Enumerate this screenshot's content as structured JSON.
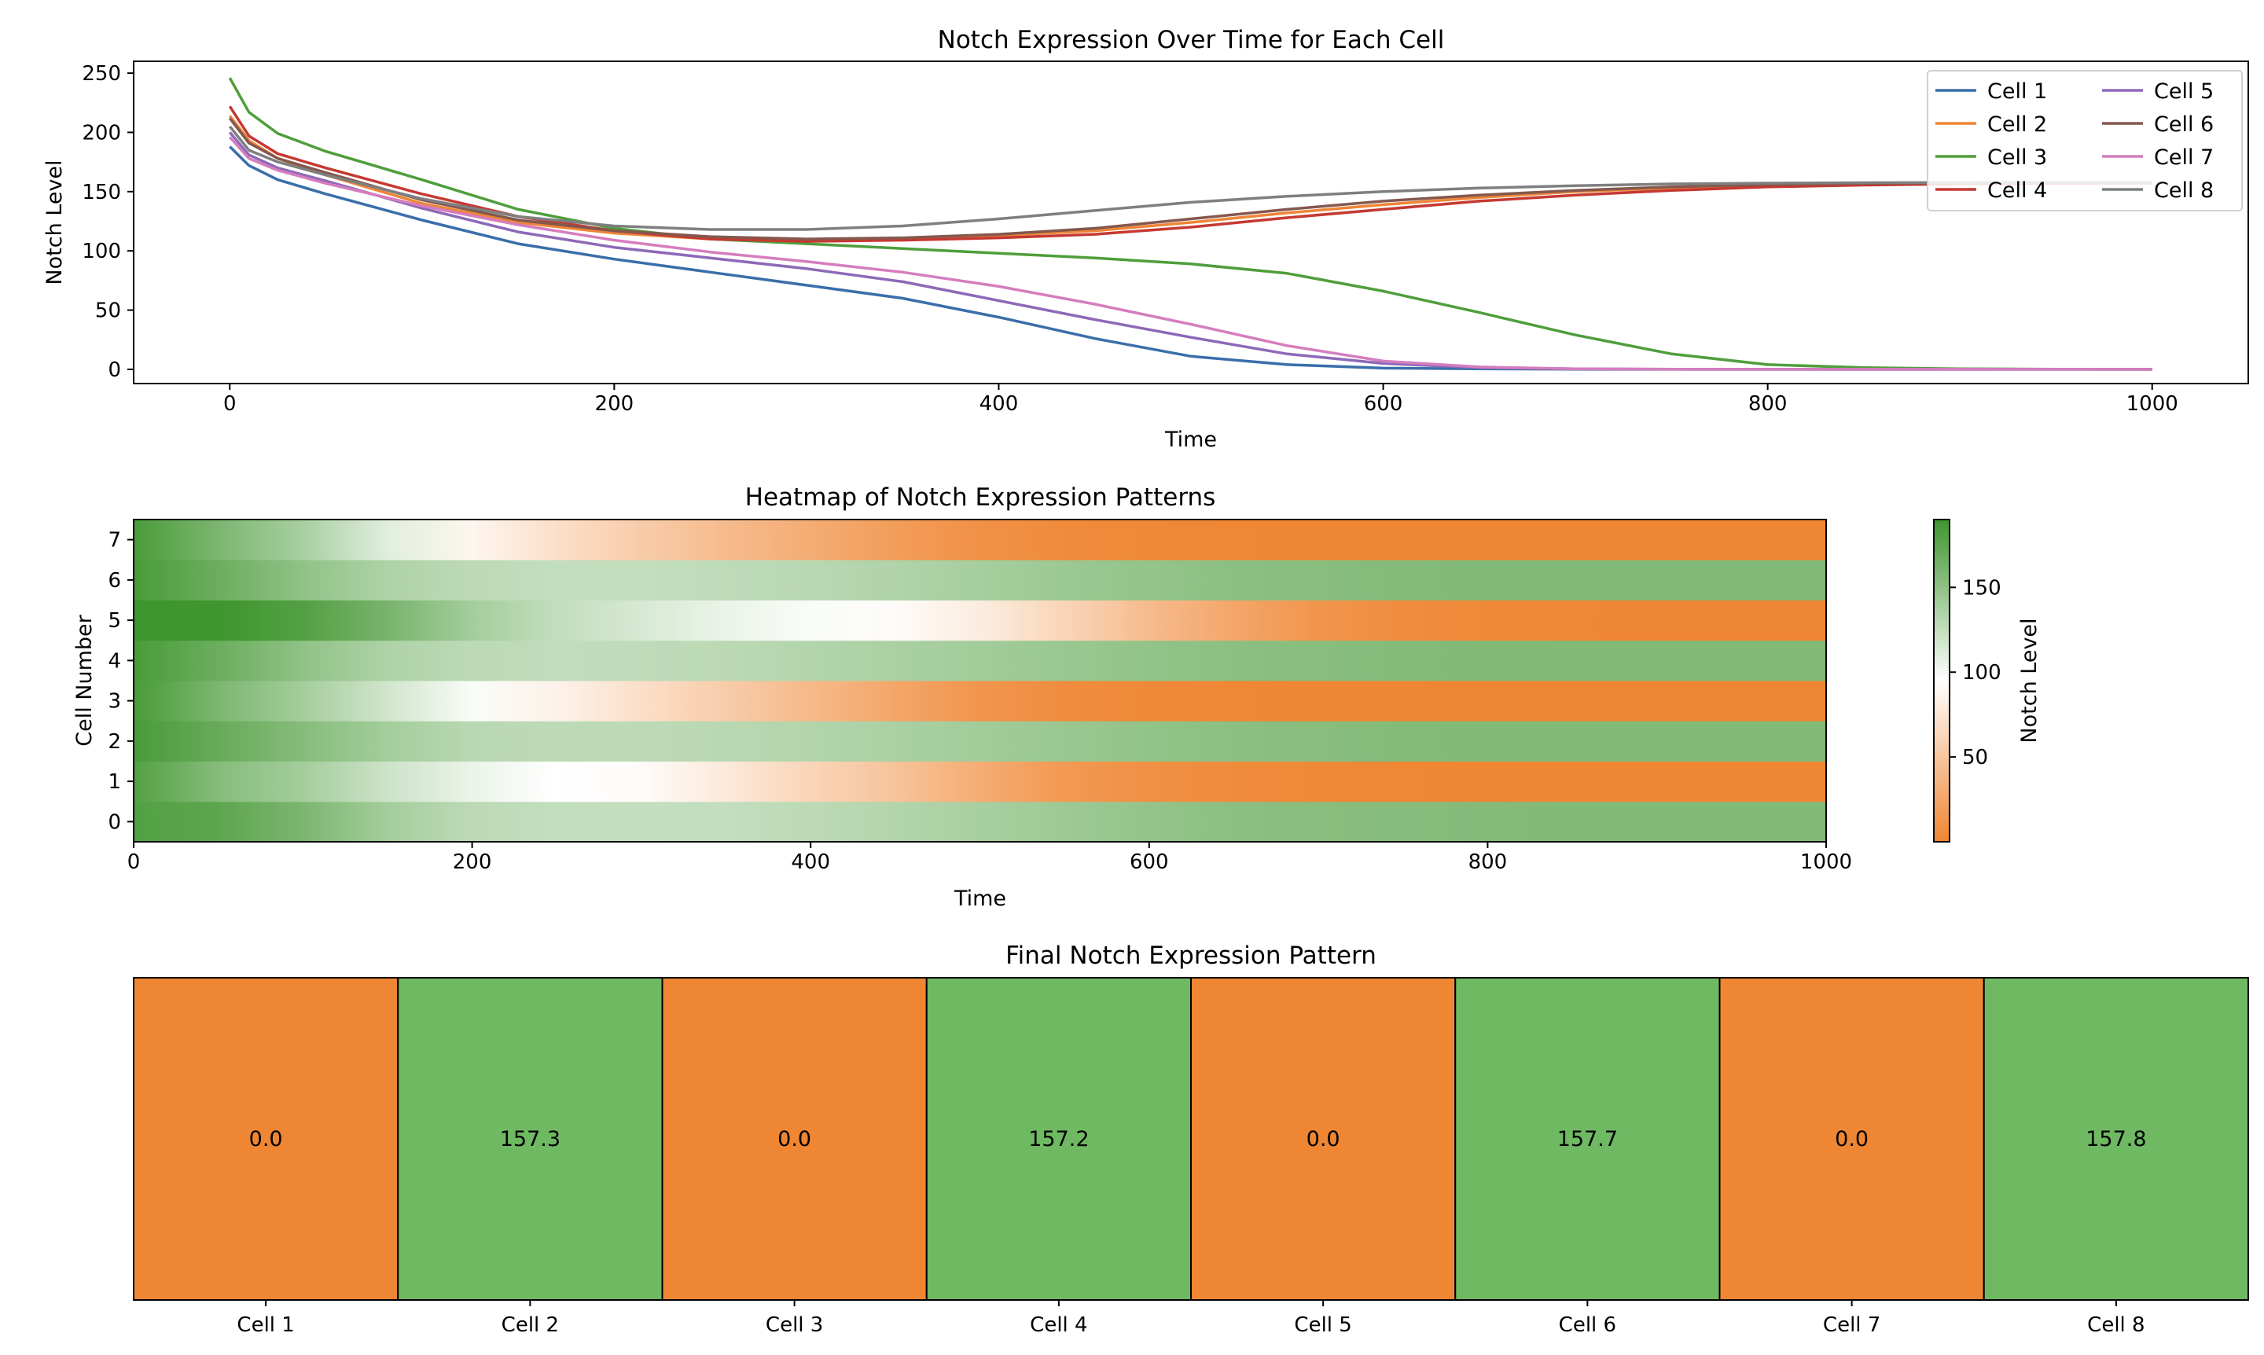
{
  "chart_data": [
    {
      "type": "line",
      "title": "Notch Expression Over Time for Each Cell",
      "xlabel": "Time",
      "ylabel": "Notch Level",
      "xlim": [
        -50,
        1050
      ],
      "ylim": [
        -12,
        260
      ],
      "xticks": [
        0,
        200,
        400,
        600,
        800,
        1000
      ],
      "yticks": [
        0,
        50,
        100,
        150,
        200,
        250
      ],
      "grid": false,
      "legend": "top-right",
      "x": [
        0,
        10,
        25,
        50,
        100,
        150,
        200,
        250,
        300,
        350,
        400,
        450,
        500,
        550,
        600,
        650,
        700,
        750,
        800,
        850,
        900,
        950,
        1000
      ],
      "series": [
        {
          "name": "Cell 1",
          "color": "#3a6eaa",
          "values": [
            188,
            172,
            160,
            148,
            126,
            106,
            93,
            82,
            71,
            60,
            44,
            26,
            11,
            4,
            1,
            0.4,
            0.1,
            0,
            0,
            0,
            0,
            0,
            0
          ]
        },
        {
          "name": "Cell 2",
          "color": "#ef8536",
          "values": [
            214,
            193,
            178,
            164,
            140,
            124,
            115,
            110,
            109,
            110,
            113,
            117,
            124,
            132,
            139,
            145,
            150,
            153,
            155,
            156,
            157,
            157.2,
            157.3
          ]
        },
        {
          "name": "Cell 3",
          "color": "#4f9e3c",
          "values": [
            246,
            217,
            199,
            184,
            160,
            135,
            119,
            110,
            106,
            102,
            98,
            94,
            89,
            81,
            66,
            48,
            29,
            13,
            4,
            1.5,
            0.5,
            0.1,
            0
          ]
        },
        {
          "name": "Cell 4",
          "color": "#c53932",
          "values": [
            222,
            197,
            182,
            170,
            148,
            129,
            117,
            110,
            108,
            109,
            111,
            114,
            120,
            128,
            135,
            142,
            147,
            151,
            154,
            155.5,
            156.5,
            157,
            157.2
          ]
        },
        {
          "name": "Cell 5",
          "color": "#8d69b8",
          "values": [
            200,
            181,
            170,
            159,
            136,
            116,
            103,
            94,
            85,
            74,
            58,
            42,
            27,
            13,
            5,
            1.5,
            0.5,
            0.1,
            0,
            0,
            0,
            0,
            0
          ]
        },
        {
          "name": "Cell 6",
          "color": "#84584e",
          "values": [
            212,
            191,
            178,
            166,
            143,
            126,
            117,
            112,
            110,
            111,
            114,
            119,
            127,
            135,
            142,
            147,
            151,
            154,
            156,
            157,
            157.4,
            157.6,
            157.7
          ]
        },
        {
          "name": "Cell 7",
          "color": "#d57dbe",
          "values": [
            196,
            178,
            168,
            157,
            138,
            122,
            109,
            99,
            91,
            82,
            70,
            55,
            38,
            20,
            7,
            2,
            0.5,
            0.1,
            0,
            0,
            0,
            0,
            0
          ]
        },
        {
          "name": "Cell 8",
          "color": "#7f7f7f",
          "values": [
            205,
            185,
            175,
            164,
            144,
            129,
            121,
            118,
            118,
            121,
            127,
            134,
            141,
            146,
            150,
            153,
            155,
            156.5,
            157.2,
            157.5,
            157.7,
            157.8,
            157.8
          ]
        }
      ]
    },
    {
      "type": "heatmap",
      "title": "Heatmap of Notch Expression Patterns",
      "xlabel": "Time",
      "ylabel": "Cell Number",
      "xlim": [
        0,
        1000
      ],
      "xticks": [
        0,
        200,
        400,
        600,
        800,
        1000
      ],
      "yticks": [
        0,
        1,
        2,
        3,
        4,
        5,
        6,
        7
      ],
      "colorbar": {
        "label": "Notch Level",
        "range": [
          0,
          190
        ],
        "ticks": [
          50,
          100,
          150
        ],
        "low_color": "#ef8633",
        "mid_color": "#ffffff",
        "high_color": "#3f952e"
      },
      "x": [
        0,
        50,
        100,
        150,
        200,
        250,
        300,
        350,
        400,
        450,
        500,
        550,
        600,
        650,
        700,
        750,
        800,
        850,
        900,
        950,
        1000
      ],
      "rows": [
        {
          "cell": 0,
          "values": [
            180,
            175,
            160,
            140,
            128,
            125,
            124,
            125,
            128,
            133,
            138,
            143,
            148,
            152,
            154,
            155,
            156,
            157,
            157,
            157,
            157
          ]
        },
        {
          "cell": 1,
          "values": [
            180,
            155,
            140,
            120,
            105,
            95,
            92,
            78,
            62,
            48,
            30,
            15,
            8,
            4,
            2,
            1,
            0,
            0,
            0,
            0,
            0
          ]
        },
        {
          "cell": 2,
          "values": [
            185,
            170,
            155,
            140,
            130,
            128,
            128,
            130,
            133,
            137,
            141,
            145,
            149,
            152,
            154,
            156,
            157,
            157,
            157,
            157,
            157
          ]
        },
        {
          "cell": 3,
          "values": [
            185,
            160,
            140,
            118,
            98,
            85,
            70,
            55,
            40,
            25,
            12,
            5,
            2,
            1,
            0,
            0,
            0,
            0,
            0,
            0,
            0
          ]
        },
        {
          "cell": 4,
          "values": [
            185,
            168,
            150,
            135,
            128,
            126,
            127,
            129,
            133,
            137,
            141,
            145,
            149,
            152,
            154,
            156,
            157,
            157,
            157,
            157,
            157
          ]
        },
        {
          "cell": 5,
          "values": [
            190,
            190,
            180,
            162,
            140,
            125,
            115,
            105,
            98,
            92,
            80,
            62,
            42,
            25,
            12,
            5,
            2,
            1,
            0,
            0,
            0
          ]
        },
        {
          "cell": 6,
          "values": [
            185,
            168,
            150,
            135,
            128,
            125,
            125,
            127,
            130,
            134,
            139,
            144,
            148,
            152,
            154,
            156,
            157,
            157,
            157,
            157,
            157
          ]
        },
        {
          "cell": 7,
          "values": [
            185,
            160,
            138,
            110,
            88,
            70,
            55,
            42,
            30,
            18,
            9,
            4,
            2,
            1,
            0,
            0,
            0,
            0,
            0,
            0,
            0
          ]
        }
      ]
    },
    {
      "type": "table",
      "title": "Final Notch Expression Pattern",
      "categories": [
        "Cell 1",
        "Cell 2",
        "Cell 3",
        "Cell 4",
        "Cell 5",
        "Cell 6",
        "Cell 7",
        "Cell 8"
      ],
      "values": [
        0.0,
        157.3,
        0.0,
        157.2,
        0.0,
        157.7,
        0.0,
        157.8
      ],
      "labels": [
        "0.0",
        "157.3",
        "0.0",
        "157.2",
        "0.0",
        "157.7",
        "0.0",
        "157.8"
      ],
      "low_color": "#ef8633",
      "high_color": "#70b963"
    }
  ]
}
